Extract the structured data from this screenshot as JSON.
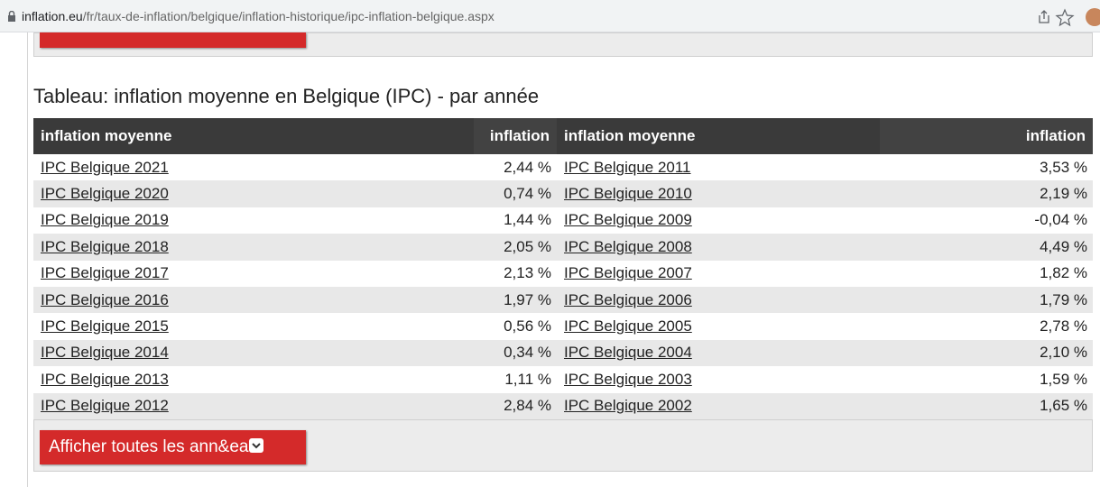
{
  "url": {
    "host": "inflation.eu",
    "path": "/fr/taux-de-inflation/belgique/inflation-historique/ipc-inflation-belgique.aspx"
  },
  "title": "Tableau: inflation moyenne en Belgique (IPC) - par année",
  "table": {
    "header": [
      "inflation moyenne",
      "inflation",
      "inflation moyenne",
      "inflation"
    ],
    "rows": [
      [
        "IPC Belgique 2021",
        "2,44 %",
        "IPC Belgique 2011",
        "3,53 %"
      ],
      [
        "IPC Belgique 2020",
        "0,74 %",
        "IPC Belgique 2010",
        "2,19 %"
      ],
      [
        "IPC Belgique 2019",
        "1,44 %",
        "IPC Belgique 2009",
        "-0,04 %"
      ],
      [
        "IPC Belgique 2018",
        "2,05 %",
        "IPC Belgique 2008",
        "4,49 %"
      ],
      [
        "IPC Belgique 2017",
        "2,13 %",
        "IPC Belgique 2007",
        "1,82 %"
      ],
      [
        "IPC Belgique 2016",
        "1,97 %",
        "IPC Belgique 2006",
        "1,79 %"
      ],
      [
        "IPC Belgique 2015",
        "0,56 %",
        "IPC Belgique 2005",
        "2,78 %"
      ],
      [
        "IPC Belgique 2014",
        "0,34 %",
        "IPC Belgique 2004",
        "2,10 %"
      ],
      [
        "IPC Belgique 2013",
        "1,11 %",
        "IPC Belgique 2003",
        "1,59 %"
      ],
      [
        "IPC Belgique 2012",
        "2,84 %",
        "IPC Belgique 2002",
        "1,65 %"
      ]
    ]
  },
  "button": "Afficher toutes les ann&ea"
}
